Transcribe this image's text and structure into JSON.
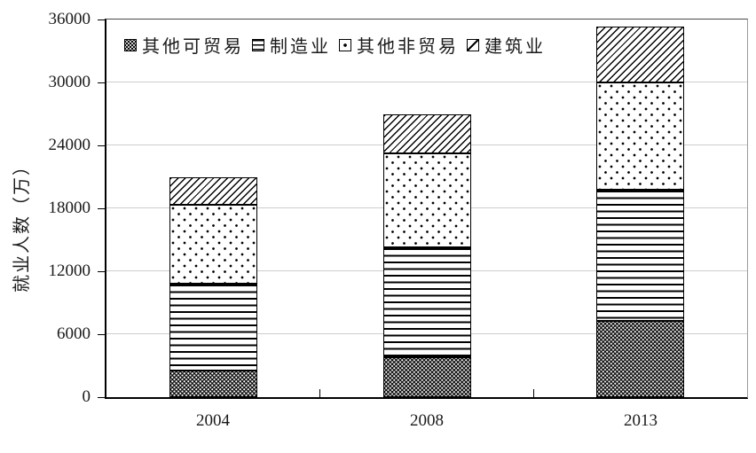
{
  "figure": {
    "y_axis_title": "就业人数（万）",
    "y_tick_labels": [
      "0",
      "6000",
      "12000",
      "18000",
      "24000",
      "30000",
      "36000"
    ],
    "x_tick_labels": [
      "2004",
      "2008",
      "2013"
    ]
  },
  "colors": {
    "bar_fill": "#ffffff",
    "bar_stroke": "#000000",
    "gridline": "#cdcdcd",
    "axis": "#000000",
    "text": "#1a1a1a",
    "background": "#ffffff"
  },
  "chart_data": {
    "type": "bar",
    "stacked": true,
    "title": "",
    "xlabel": "",
    "ylabel": "就业人数（万）",
    "ylim": [
      0,
      36000
    ],
    "y_tick_interval": 6000,
    "y_ticks": [
      "0",
      "6000",
      "12000",
      "18000",
      "24000",
      "30000",
      "36000"
    ],
    "categories": [
      "2004",
      "2008",
      "2013"
    ],
    "series": [
      {
        "name": "其他可贸易",
        "pattern": "dense",
        "values": [
          2500,
          3800,
          7300
        ]
      },
      {
        "name": "制造业",
        "pattern": "hlines",
        "values": [
          8300,
          10500,
          12500
        ]
      },
      {
        "name": "其他非贸易",
        "pattern": "dots",
        "values": [
          7500,
          8900,
          10200
        ]
      },
      {
        "name": "建筑业",
        "pattern": "diag",
        "values": [
          2700,
          3800,
          5300
        ]
      }
    ],
    "totals": [
      21000,
      27000,
      35300
    ],
    "grid": "horizontal",
    "legend_position": "top-inside"
  }
}
